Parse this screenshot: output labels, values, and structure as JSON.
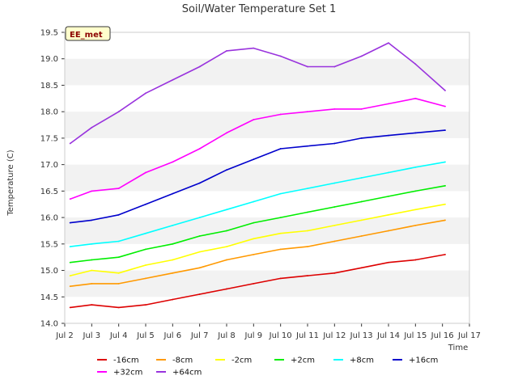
{
  "chart_data": {
    "type": "line",
    "title": "Soil/Water Temperature Set 1",
    "xlabel": "Time",
    "ylabel": "Temperature (C)",
    "station_label": "EE_met",
    "xlim": [
      2,
      17
    ],
    "ylim": [
      14.0,
      19.5
    ],
    "x_ticks": [
      {
        "v": 2,
        "label": "Jul 2"
      },
      {
        "v": 3,
        "label": "Jul 3"
      },
      {
        "v": 4,
        "label": "Jul 4"
      },
      {
        "v": 5,
        "label": "Jul 5"
      },
      {
        "v": 6,
        "label": "Jul 6"
      },
      {
        "v": 7,
        "label": "Jul 7"
      },
      {
        "v": 8,
        "label": "Jul 8"
      },
      {
        "v": 9,
        "label": "Jul 9"
      },
      {
        "v": 10,
        "label": "Jul 10"
      },
      {
        "v": 11,
        "label": "Jul 11"
      },
      {
        "v": 12,
        "label": "Jul 12"
      },
      {
        "v": 13,
        "label": "Jul 13"
      },
      {
        "v": 14,
        "label": "Jul 14"
      },
      {
        "v": 15,
        "label": "Jul 15"
      },
      {
        "v": 16,
        "label": "Jul 16"
      },
      {
        "v": 17,
        "label": "Jul 17"
      }
    ],
    "y_ticks": [
      {
        "v": 14.0,
        "label": "14.0"
      },
      {
        "v": 14.5,
        "label": "14.5"
      },
      {
        "v": 15.0,
        "label": "15.0"
      },
      {
        "v": 15.5,
        "label": "15.5"
      },
      {
        "v": 16.0,
        "label": "16.0"
      },
      {
        "v": 16.5,
        "label": "16.5"
      },
      {
        "v": 17.0,
        "label": "17.0"
      },
      {
        "v": 17.5,
        "label": "17.5"
      },
      {
        "v": 18.0,
        "label": "18.0"
      },
      {
        "v": 18.5,
        "label": "18.5"
      },
      {
        "v": 19.0,
        "label": "19.0"
      },
      {
        "v": 19.5,
        "label": "19.5"
      }
    ],
    "grid": "horizontal bands",
    "legend_position": "bottom",
    "x": [
      2.2,
      3.0,
      4.0,
      5.0,
      6.0,
      7.0,
      8.0,
      9.0,
      10.0,
      11.0,
      12.0,
      13.0,
      14.0,
      15.0,
      16.1
    ],
    "series": [
      {
        "name": "-16cm",
        "color": "#dd0000",
        "values": [
          14.3,
          14.35,
          14.3,
          14.35,
          14.45,
          14.55,
          14.65,
          14.75,
          14.85,
          14.9,
          14.95,
          15.05,
          15.15,
          15.2,
          15.3
        ]
      },
      {
        "name": "-8cm",
        "color": "#ff9900",
        "values": [
          14.7,
          14.75,
          14.75,
          14.85,
          14.95,
          15.05,
          15.2,
          15.3,
          15.4,
          15.45,
          15.55,
          15.65,
          15.75,
          15.85,
          15.95
        ]
      },
      {
        "name": "-2cm",
        "color": "#ffff00",
        "values": [
          14.9,
          15.0,
          14.95,
          15.1,
          15.2,
          15.35,
          15.45,
          15.6,
          15.7,
          15.75,
          15.85,
          15.95,
          16.05,
          16.15,
          16.25
        ]
      },
      {
        "name": "+2cm",
        "color": "#00ee00",
        "values": [
          15.15,
          15.2,
          15.25,
          15.4,
          15.5,
          15.65,
          15.75,
          15.9,
          16.0,
          16.1,
          16.2,
          16.3,
          16.4,
          16.5,
          16.6
        ]
      },
      {
        "name": "+8cm",
        "color": "#00ffff",
        "values": [
          15.45,
          15.5,
          15.55,
          15.7,
          15.85,
          16.0,
          16.15,
          16.3,
          16.45,
          16.55,
          16.65,
          16.75,
          16.85,
          16.95,
          17.05
        ]
      },
      {
        "name": "+16cm",
        "color": "#0000cc",
        "values": [
          15.9,
          15.95,
          16.05,
          16.25,
          16.45,
          16.65,
          16.9,
          17.1,
          17.3,
          17.35,
          17.4,
          17.5,
          17.55,
          17.6,
          17.65
        ]
      },
      {
        "name": "+32cm",
        "color": "#ff00ff",
        "values": [
          16.35,
          16.5,
          16.55,
          16.85,
          17.05,
          17.3,
          17.6,
          17.85,
          17.95,
          18.0,
          18.05,
          18.05,
          18.15,
          18.25,
          18.1
        ]
      },
      {
        "name": "+64cm",
        "color": "#9933dd",
        "values": [
          17.4,
          17.7,
          18.0,
          18.35,
          18.6,
          18.85,
          19.15,
          19.2,
          19.05,
          18.85,
          18.85,
          19.05,
          19.3,
          18.9,
          18.4
        ]
      }
    ]
  }
}
